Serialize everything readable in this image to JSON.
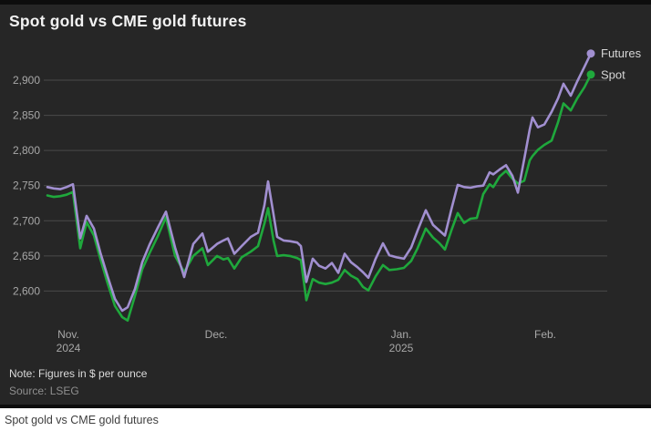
{
  "page": {
    "caption": "Spot gold vs CME gold futures"
  },
  "chart": {
    "title": "Spot gold vs CME gold futures",
    "note": "Note: Figures in $ per ounce",
    "source": "Source: LSEG"
  },
  "colors": {
    "background": "#262626",
    "frame": "#0d0d0d",
    "grid": "#4a4a4a",
    "axis_text": "#a8a8a8",
    "legend_text": "#d6d6d6",
    "futures": "#a18fd0",
    "spot": "#1fa83c"
  },
  "chart_data": {
    "type": "line",
    "title": "Spot gold vs CME gold futures",
    "unit": "$ per ounce",
    "note": "Note: Figures in $ per ounce",
    "source": "Source: LSEG",
    "grid": true,
    "legend_position": "line-end",
    "ylim": [
      2550,
      2950
    ],
    "yticks": [
      {
        "value": 2900,
        "label": "2,900"
      },
      {
        "value": 2850,
        "label": "2,850"
      },
      {
        "value": 2800,
        "label": "2,800"
      },
      {
        "value": 2750,
        "label": "2,750"
      },
      {
        "value": 2700,
        "label": "2,700"
      },
      {
        "value": 2650,
        "label": "2,650"
      },
      {
        "value": 2600,
        "label": "2,600"
      }
    ],
    "x_axis": {
      "type": "time",
      "labels": [
        {
          "t": 0.0386,
          "line1": "Nov.",
          "line2": "2024"
        },
        {
          "t": 0.3104,
          "line1": "Dec.",
          "line2": ""
        },
        {
          "t": 0.651,
          "line1": "Jan.",
          "line2": "2025"
        },
        {
          "t": 0.9161,
          "line1": "Feb.",
          "line2": ""
        }
      ]
    },
    "t": [
      0,
      0.0117,
      0.0235,
      0.0352,
      0.047,
      0.0604,
      0.0721,
      0.0856,
      0.0973,
      0.1107,
      0.1242,
      0.1376,
      0.1477,
      0.1611,
      0.1745,
      0.1879,
      0.203,
      0.2181,
      0.2349,
      0.2517,
      0.2685,
      0.2852,
      0.2953,
      0.3121,
      0.3238,
      0.3322,
      0.344,
      0.3574,
      0.3742,
      0.3876,
      0.3993,
      0.406,
      0.4161,
      0.4228,
      0.4345,
      0.4463,
      0.4597,
      0.4664,
      0.4765,
      0.4883,
      0.5,
      0.5117,
      0.5235,
      0.5352,
      0.547,
      0.5587,
      0.5705,
      0.5805,
      0.5906,
      0.604,
      0.6174,
      0.6292,
      0.6426,
      0.656,
      0.6695,
      0.6812,
      0.6963,
      0.7097,
      0.7215,
      0.7315,
      0.7433,
      0.755,
      0.7668,
      0.7785,
      0.7903,
      0.802,
      0.8138,
      0.8205,
      0.8322,
      0.844,
      0.8557,
      0.8658,
      0.8775,
      0.8876,
      0.8926,
      0.9027,
      0.9144,
      0.9279,
      0.9396,
      0.9497,
      0.9631,
      0.9748,
      0.9883,
      1
    ],
    "series": [
      {
        "name": "Futures",
        "color": "#a18fd0",
        "values": [
          2748,
          2746,
          2745,
          2748,
          2752,
          2675,
          2707,
          2689,
          2655,
          2621,
          2589,
          2572,
          2577,
          2603,
          2641,
          2666,
          2690,
          2713,
          2662,
          2620,
          2667,
          2682,
          2656,
          2667,
          2672,
          2675,
          2653,
          2664,
          2677,
          2683,
          2722,
          2756,
          2709,
          2677,
          2672,
          2671,
          2669,
          2664,
          2613,
          2646,
          2636,
          2632,
          2640,
          2626,
          2653,
          2641,
          2634,
          2627,
          2619,
          2646,
          2668,
          2651,
          2648,
          2646,
          2662,
          2686,
          2715,
          2694,
          2686,
          2679,
          2716,
          2751,
          2748,
          2747,
          2749,
          2750,
          2769,
          2766,
          2773,
          2779,
          2764,
          2740,
          2788,
          2830,
          2847,
          2833,
          2837,
          2855,
          2874,
          2895,
          2878,
          2898,
          2919,
          2938
        ]
      },
      {
        "name": "Spot",
        "color": "#1fa83c",
        "values": [
          2736,
          2734,
          2735,
          2737,
          2741,
          2661,
          2698,
          2679,
          2646,
          2611,
          2579,
          2563,
          2558,
          2593,
          2631,
          2654,
          2678,
          2705,
          2650,
          2627,
          2650,
          2661,
          2637,
          2650,
          2645,
          2647,
          2632,
          2648,
          2656,
          2664,
          2696,
          2718,
          2672,
          2650,
          2651,
          2650,
          2647,
          2644,
          2587,
          2617,
          2612,
          2610,
          2612,
          2616,
          2630,
          2622,
          2617,
          2606,
          2601,
          2621,
          2637,
          2630,
          2631,
          2633,
          2643,
          2661,
          2689,
          2676,
          2668,
          2659,
          2686,
          2711,
          2697,
          2703,
          2704,
          2738,
          2752,
          2748,
          2763,
          2771,
          2760,
          2753,
          2757,
          2786,
          2792,
          2801,
          2808,
          2814,
          2840,
          2867,
          2857,
          2874,
          2890,
          2908
        ]
      }
    ]
  }
}
